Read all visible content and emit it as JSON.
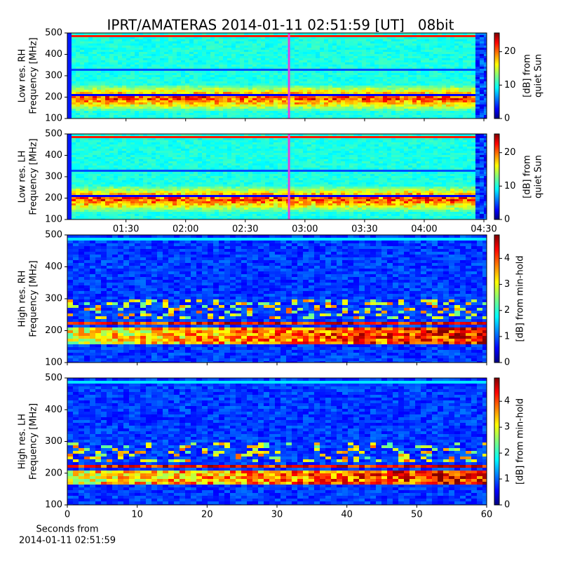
{
  "title": "IPRT/AMATERAS 2014-01-11 02:51:59 [UT]   08bit",
  "chart_data": [
    {
      "type": "heatmap",
      "ylabel": [
        "Low res. RH",
        "Frequency [MHz]"
      ],
      "ylim": [
        100,
        500
      ],
      "yticks": [
        100,
        200,
        300,
        400,
        500
      ],
      "xlim": [
        60.5,
        271.4
      ],
      "cursor_x": 171.98,
      "cursor_color": "#e040e0",
      "colorbar": {
        "label": [
          "[dB] from",
          "quiet Sun"
        ],
        "clim": [
          0,
          25.6
        ],
        "ticks": [
          0,
          10,
          20
        ],
        "colormap": "jet"
      }
    },
    {
      "type": "heatmap",
      "ylabel": [
        "Low res. LH",
        "Frequency [MHz]"
      ],
      "ylim": [
        100,
        500
      ],
      "yticks": [
        100,
        200,
        300,
        400,
        500
      ],
      "xlim": [
        60.5,
        271.4
      ],
      "cursor_x": 171.98,
      "cursor_color": "#e040e0",
      "xticks": [
        {
          "value": 90,
          "label": "01:30"
        },
        {
          "value": 120,
          "label": "02:00"
        },
        {
          "value": 150,
          "label": "02:30"
        },
        {
          "value": 180,
          "label": "03:00"
        },
        {
          "value": 210,
          "label": "03:30"
        },
        {
          "value": 240,
          "label": "04:00"
        },
        {
          "value": 270,
          "label": "04:30"
        }
      ],
      "colorbar": {
        "label": [
          "[dB] from",
          "quiet Sun"
        ],
        "clim": [
          0,
          25.6
        ],
        "ticks": [
          0,
          10,
          20
        ],
        "colormap": "jet"
      }
    },
    {
      "type": "heatmap",
      "ylabel": [
        "High res. RH",
        "Frequency [MHz]"
      ],
      "ylim": [
        100,
        500
      ],
      "yticks": [
        100,
        200,
        300,
        400,
        500
      ],
      "xlim": [
        0,
        60
      ],
      "colorbar": {
        "label": [
          "[dB] from min-hold"
        ],
        "clim": [
          0,
          4.9
        ],
        "ticks": [
          0,
          1,
          2,
          3,
          4
        ],
        "colormap": "jet"
      }
    },
    {
      "type": "heatmap",
      "ylabel": [
        "High res. LH",
        "Frequency [MHz]"
      ],
      "ylim": [
        100,
        500
      ],
      "yticks": [
        100,
        200,
        300,
        400,
        500
      ],
      "xlim": [
        0,
        60
      ],
      "xticks": [
        0,
        10,
        20,
        30,
        40,
        50,
        60
      ],
      "xlabel": [
        "Seconds from",
        "2014-01-11 02:51:59"
      ],
      "colorbar": {
        "label": [
          "[dB] from min-hold"
        ],
        "clim": [
          0,
          4.9
        ],
        "ticks": [
          0,
          1,
          2,
          3,
          4
        ],
        "colormap": "jet"
      }
    }
  ]
}
